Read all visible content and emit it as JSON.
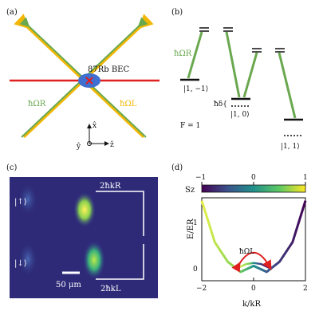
{
  "panels": {
    "a": {
      "tag": "(a)",
      "bec": "87Rb BEC",
      "omega_r": "ħΩR",
      "omega_l": "ħΩL",
      "axis_x": "x̂",
      "axis_y": "ŷ",
      "axis_z": "ẑ"
    },
    "b": {
      "tag": "(b)",
      "omega_r": "ħΩR",
      "delta": "ħδ{",
      "state_m1": "|1, −1⟩",
      "state_0": "|1, 0⟩",
      "state_p1": "|1, 1⟩",
      "f_label": "F = 1"
    },
    "c": {
      "tag": "(c)",
      "spin_up": "|↑⟩",
      "spin_down": "|↓⟩",
      "scale": "50 μm",
      "kick_r": "2ħkR",
      "kick_l": "2ħkL"
    },
    "d": {
      "tag": "(d)",
      "cbar_label": "Sz",
      "cbar_ticks": [
        "−1",
        "0",
        "1"
      ],
      "ylabel": "E/ER",
      "xlabel": "k/kR",
      "xticks": [
        "−2",
        "0",
        "2"
      ],
      "yticks": [
        "0",
        "1"
      ],
      "omega_l": "ħΩL"
    }
  },
  "colors": {
    "green": "#6aa84f",
    "yellow": "#f2b705",
    "red": "#e02020",
    "blue": "#3f6fd0",
    "purple": "#4b1a6e"
  },
  "chart_data": {
    "type": "line",
    "title": "",
    "xlabel": "k/kR",
    "ylabel": "E/ER",
    "xlim": [
      -2,
      2
    ],
    "ylim": [
      -0.2,
      1.2
    ],
    "series": [
      {
        "x": [
          -2.0,
          -1.5,
          -1.0,
          -0.5,
          0.0,
          0.5,
          1.0,
          1.5,
          2.0
        ],
        "values": [
          1.15,
          0.45,
          0.12,
          -0.05,
          0.05,
          -0.05,
          0.12,
          0.45,
          1.15
        ]
      },
      {
        "x": [
          -0.6,
          -0.3,
          0.0,
          0.3,
          0.6
        ],
        "values": [
          0.02,
          0.08,
          0.1,
          0.08,
          0.02
        ]
      }
    ]
  }
}
